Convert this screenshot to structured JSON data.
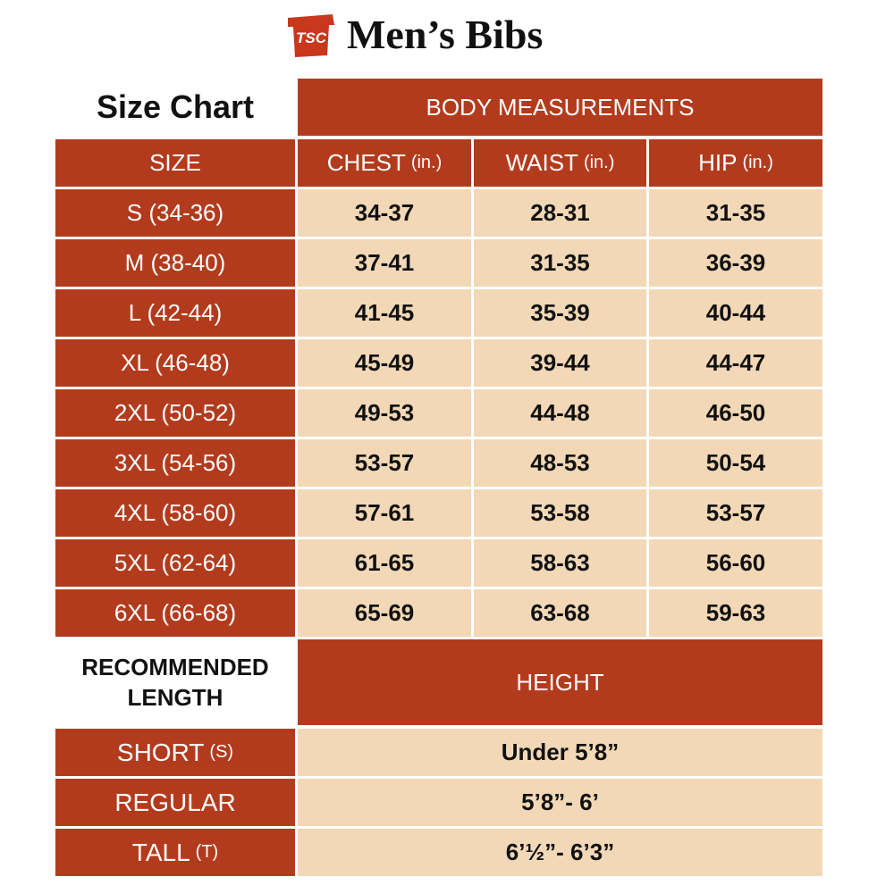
{
  "header": {
    "logo": "TSC",
    "title": "Men’s Bibs"
  },
  "size_table": {
    "title": "Size Chart",
    "group_header": "BODY MEASUREMENTS",
    "columns": [
      {
        "label": "SIZE"
      },
      {
        "label": "CHEST",
        "unit": "(in.)"
      },
      {
        "label": "WAIST",
        "unit": "(in.)"
      },
      {
        "label": "HIP",
        "unit": "(in.)"
      }
    ],
    "rows": [
      [
        "S (34-36)",
        "34-37",
        "28-31",
        "31-35"
      ],
      [
        "M (38-40)",
        "37-41",
        "31-35",
        "36-39"
      ],
      [
        "L (42-44)",
        "41-45",
        "35-39",
        "40-44"
      ],
      [
        "XL (46-48)",
        "45-49",
        "39-44",
        "44-47"
      ],
      [
        "2XL (50-52)",
        "49-53",
        "44-48",
        "46-50"
      ],
      [
        "3XL (54-56)",
        "53-57",
        "48-53",
        "50-54"
      ],
      [
        "4XL (58-60)",
        "57-61",
        "53-58",
        "53-57"
      ],
      [
        "5XL (62-64)",
        "61-65",
        "58-63",
        "56-60"
      ],
      [
        "6XL (66-68)",
        "65-69",
        "63-68",
        "59-63"
      ]
    ]
  },
  "length_table": {
    "title": "RECOMMENDED LENGTH",
    "header": "HEIGHT",
    "rows": [
      {
        "length": "SHORT",
        "abbr": "(S)",
        "height": "Under 5’8”"
      },
      {
        "length": "REGULAR",
        "height": "5’8”- 6’"
      },
      {
        "length": "TALL",
        "abbr": "(T)",
        "height": "6’½”- 6’3”"
      }
    ]
  }
}
